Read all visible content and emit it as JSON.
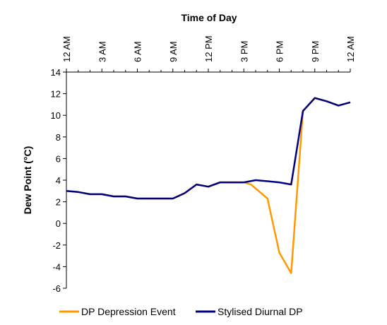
{
  "chart_data": {
    "type": "line",
    "title": "",
    "xlabel": "Time of Day",
    "ylabel": "Dew Point (°C)",
    "x_axis_position": "top",
    "x_ticks": [
      {
        "hour": 0,
        "label": "12 AM"
      },
      {
        "hour": 3,
        "label": "3 AM"
      },
      {
        "hour": 6,
        "label": "6 AM"
      },
      {
        "hour": 9,
        "label": "9 AM"
      },
      {
        "hour": 12,
        "label": "12 PM"
      },
      {
        "hour": 15,
        "label": "3 PM"
      },
      {
        "hour": 18,
        "label": "6 PM"
      },
      {
        "hour": 21,
        "label": "9 PM"
      },
      {
        "hour": 24,
        "label": "12 AM"
      }
    ],
    "xlim": [
      0,
      24
    ],
    "ylim": [
      -6,
      14
    ],
    "y_ticks": [
      14,
      12,
      10,
      8,
      6,
      4,
      2,
      0,
      -2,
      -4,
      -6
    ],
    "grid": false,
    "legend_position": "bottom",
    "series": [
      {
        "name": "DP Depression Event",
        "color": "#FF9900",
        "x": [
          0,
          1,
          2,
          3,
          4,
          5,
          6,
          7,
          8,
          9,
          10,
          11,
          12,
          13,
          14,
          15,
          15.6,
          17,
          18,
          19,
          20,
          21,
          22,
          23,
          24
        ],
        "y": [
          3.0,
          2.9,
          2.7,
          2.7,
          2.5,
          2.5,
          2.3,
          2.3,
          2.3,
          2.3,
          2.8,
          3.6,
          3.4,
          3.8,
          3.8,
          3.8,
          3.6,
          2.3,
          -2.7,
          -4.6,
          10.4,
          11.6,
          11.3,
          10.9,
          11.2
        ]
      },
      {
        "name": "Stylised Diurnal DP",
        "color": "#000080",
        "x": [
          0,
          1,
          2,
          3,
          4,
          5,
          6,
          7,
          8,
          9,
          10,
          11,
          12,
          13,
          14,
          15,
          16,
          17,
          18,
          19,
          20,
          21,
          22,
          23,
          24
        ],
        "y": [
          3.0,
          2.9,
          2.7,
          2.7,
          2.5,
          2.5,
          2.3,
          2.3,
          2.3,
          2.3,
          2.8,
          3.6,
          3.4,
          3.8,
          3.8,
          3.8,
          4.0,
          3.9,
          3.8,
          3.6,
          10.4,
          11.6,
          11.3,
          10.9,
          11.2
        ]
      }
    ]
  }
}
